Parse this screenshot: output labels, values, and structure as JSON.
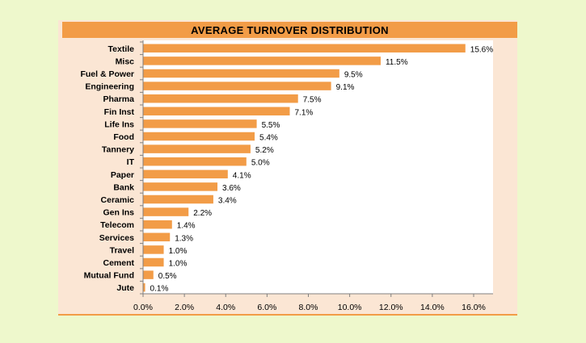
{
  "chart_data": {
    "type": "bar",
    "orientation": "horizontal",
    "title": "AVERAGE TURNOVER DISTRIBUTION",
    "categories": [
      "Textile",
      "Misc",
      "Fuel & Power",
      "Engineering",
      "Pharma",
      "Fin Inst",
      "Life Ins",
      "Food",
      "Tannery",
      "IT",
      "Paper",
      "Bank",
      "Ceramic",
      "Gen Ins",
      "Telecom",
      "Services",
      "Travel",
      "Cement",
      "Mutual Fund",
      "Jute"
    ],
    "values": [
      15.6,
      11.5,
      9.5,
      9.1,
      7.5,
      7.1,
      5.5,
      5.4,
      5.2,
      5.0,
      4.1,
      3.6,
      3.4,
      2.2,
      1.4,
      1.3,
      1.0,
      1.0,
      0.5,
      0.1
    ],
    "value_labels": [
      "15.6%",
      "11.5%",
      "9.5%",
      "9.1%",
      "7.5%",
      "7.1%",
      "5.5%",
      "5.4%",
      "5.2%",
      "5.0%",
      "4.1%",
      "3.6%",
      "3.4%",
      "2.2%",
      "1.4%",
      "1.3%",
      "1.0%",
      "1.0%",
      "0.5%",
      "0.1%"
    ],
    "x_ticks": [
      "0.0%",
      "2.0%",
      "4.0%",
      "6.0%",
      "8.0%",
      "10.0%",
      "12.0%",
      "14.0%",
      "16.0%"
    ],
    "xlim": [
      0,
      17
    ],
    "xlabel": "",
    "ylabel": "",
    "grid": false,
    "legend": "none",
    "colors": {
      "bar": "#f29c47",
      "title_bar": "#f29c47",
      "panel": "#fbe6d4",
      "plot_area": "#ffffff",
      "page": "#eef8cc"
    }
  }
}
